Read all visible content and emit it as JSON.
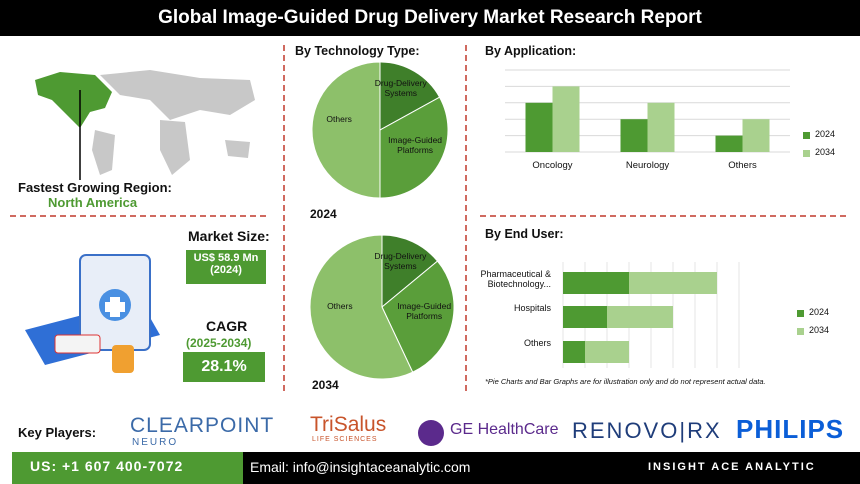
{
  "header": {
    "title": "Global Image-Guided Drug Delivery Market Research Report"
  },
  "region": {
    "label": "Fastest Growing Region:",
    "value": "North America"
  },
  "market_size": {
    "label": "Market Size:",
    "value": "US$ 58.9 Mn (2024)"
  },
  "cagr": {
    "label": "CAGR",
    "period": "(2025-2034)",
    "value": "28.1%"
  },
  "chart_data": [
    {
      "type": "pie",
      "title": "By Technology Type:",
      "subtitle": "2024",
      "categories": [
        "Drug-Delivery Systems",
        "Image-Guided Platforms",
        "Others"
      ],
      "values": [
        17,
        33,
        50
      ],
      "colors": [
        "#3f7f2a",
        "#5a9e3a",
        "#8dc06a"
      ]
    },
    {
      "type": "pie",
      "subtitle": "2034",
      "categories": [
        "Drug-Delivery Systems",
        "Image-Guided Platforms",
        "Others"
      ],
      "values": [
        14,
        29,
        57
      ],
      "colors": [
        "#3f7f2a",
        "#5a9e3a",
        "#8dc06a"
      ]
    },
    {
      "type": "bar",
      "title": "By Application:",
      "categories": [
        "Oncology",
        "Neurology",
        "Others"
      ],
      "series": [
        {
          "name": "2024",
          "color": "#4e9a32",
          "values": [
            3,
            2,
            1
          ]
        },
        {
          "name": "2034",
          "color": "#a9d18e",
          "values": [
            4,
            3,
            2
          ]
        }
      ],
      "ylim": [
        0,
        5
      ],
      "yticks": [
        0,
        1,
        2,
        3,
        4,
        5
      ],
      "grid": true,
      "legend": "right"
    },
    {
      "type": "stacked-barh",
      "title": "By End User:",
      "categories": [
        "Pharmaceutical & Biotechnology...",
        "Hospitals",
        "Others"
      ],
      "series": [
        {
          "name": "2024",
          "color": "#4e9a32",
          "values": [
            3,
            2,
            1
          ]
        },
        {
          "name": "2034",
          "color": "#a9d18e",
          "values": [
            4,
            3,
            2
          ]
        }
      ],
      "xlim": [
        0,
        8
      ],
      "xticks": [
        0,
        1,
        2,
        3,
        4,
        5,
        6,
        7,
        8
      ],
      "grid": true,
      "legend": "right"
    }
  ],
  "note": "*Pie Charts and Bar Graphs are for illustration only and do not represent actual data.",
  "key_players": {
    "label": "Key Players:",
    "companies": [
      {
        "name": "CLEARPOINT",
        "tagline": "NEURO"
      },
      {
        "name": "TriSalus",
        "tagline": "LIFE SCIENCES"
      },
      {
        "name": "GE HealthCare"
      },
      {
        "name": "RENOVO|RX"
      },
      {
        "name": "PHILIPS"
      }
    ]
  },
  "footer": {
    "phone": "US: +1 607 400-7072",
    "email": "Email: info@insightaceanalytic.com",
    "brand": "INSIGHT ACE ANALYTIC"
  }
}
